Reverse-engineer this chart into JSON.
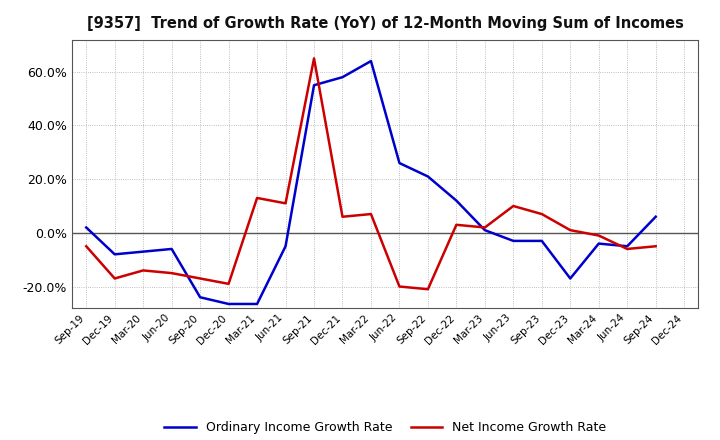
{
  "title": "[9357]  Trend of Growth Rate (YoY) of 12-Month Moving Sum of Incomes",
  "x_labels": [
    "Sep-19",
    "Dec-19",
    "Mar-20",
    "Jun-20",
    "Sep-20",
    "Dec-20",
    "Mar-21",
    "Jun-21",
    "Sep-21",
    "Dec-21",
    "Mar-22",
    "Jun-22",
    "Sep-22",
    "Dec-22",
    "Mar-23",
    "Jun-23",
    "Sep-23",
    "Dec-23",
    "Mar-24",
    "Jun-24",
    "Sep-24",
    "Dec-24"
  ],
  "ordinary_income": [
    0.02,
    -0.08,
    -0.07,
    -0.06,
    -0.24,
    -0.265,
    -0.265,
    -0.05,
    0.55,
    0.58,
    0.64,
    0.26,
    0.21,
    0.12,
    0.01,
    -0.03,
    -0.03,
    -0.17,
    -0.04,
    -0.05,
    0.06,
    null
  ],
  "net_income": [
    -0.05,
    -0.17,
    -0.14,
    -0.15,
    -0.17,
    -0.19,
    0.13,
    0.11,
    0.65,
    0.06,
    0.07,
    -0.2,
    -0.21,
    0.03,
    0.02,
    0.1,
    0.07,
    0.01,
    -0.01,
    -0.06,
    -0.05,
    null
  ],
  "ordinary_color": "#0000cc",
  "net_color": "#cc0000",
  "background_color": "#ffffff",
  "plot_bg_color": "#f0f0f0",
  "grid_color": "#aaaaaa",
  "ylim": [
    -0.28,
    0.72
  ],
  "yticks": [
    -0.2,
    0.0,
    0.2,
    0.4,
    0.6
  ],
  "legend_ordinary": "Ordinary Income Growth Rate",
  "legend_net": "Net Income Growth Rate"
}
